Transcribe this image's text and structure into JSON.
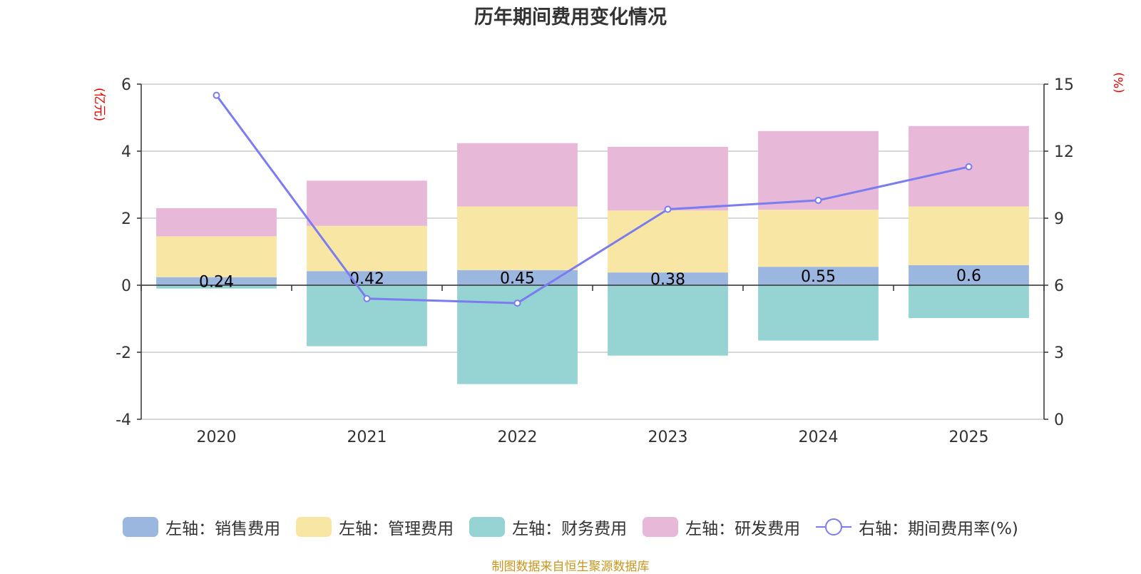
{
  "chart_data": {
    "type": "bar",
    "title": "历年期间费用变化情况",
    "left_axis_unit": "(亿元)",
    "right_axis_unit": "(%)",
    "categories": [
      "2020",
      "2021",
      "2022",
      "2023",
      "2024",
      "2025"
    ],
    "left_axis": {
      "min": -4,
      "max": 6,
      "ticks": [
        -4,
        -2,
        0,
        2,
        4,
        6
      ]
    },
    "right_axis": {
      "min": 0,
      "max": 15,
      "ticks": [
        0,
        3,
        6,
        9,
        12,
        15
      ]
    },
    "series": [
      {
        "name": "左轴：销售费用",
        "axis": "left",
        "type": "bar",
        "color": "#9bb7e0",
        "values": [
          0.24,
          0.42,
          0.45,
          0.38,
          0.55,
          0.6
        ],
        "show_labels": true
      },
      {
        "name": "左轴：管理费用",
        "axis": "left",
        "type": "bar",
        "color": "#f8e6a5",
        "values": [
          1.22,
          1.35,
          1.9,
          1.85,
          1.7,
          1.75
        ]
      },
      {
        "name": "左轴：财务费用",
        "axis": "left",
        "type": "bar",
        "color": "#96d3d3",
        "values": [
          -0.1,
          -1.82,
          -2.95,
          -2.1,
          -1.65,
          -0.98
        ]
      },
      {
        "name": "左轴：研发费用",
        "axis": "left",
        "type": "bar",
        "color": "#e8b8d8",
        "values": [
          0.84,
          1.35,
          1.89,
          1.9,
          2.35,
          2.4
        ]
      },
      {
        "name": "右轴：期间费用率(%)",
        "axis": "right",
        "type": "line",
        "color": "#7b7cf0",
        "values": [
          14.5,
          5.4,
          5.2,
          9.4,
          9.8,
          11.3
        ]
      }
    ],
    "legend_position": "bottom",
    "grid": true
  },
  "source": "制图数据来自恒生聚源数据库"
}
